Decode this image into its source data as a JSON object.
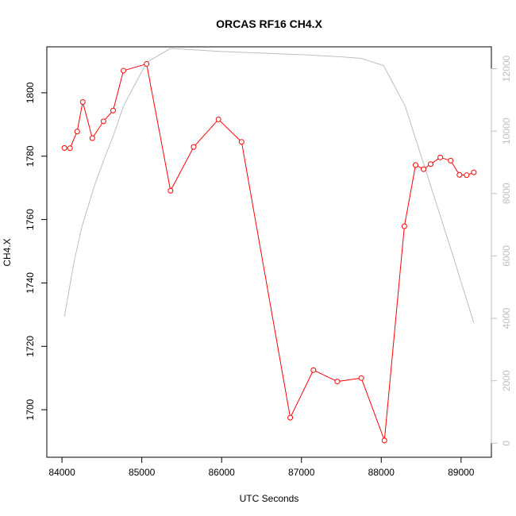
{
  "chart_data": {
    "type": "line",
    "title": "ORCAS RF16 CH4.X",
    "xlabel": "UTC Seconds",
    "ylabel": "CH4.X",
    "xlim": [
      83810,
      89380
    ],
    "ylim": [
      1685,
      1814.5
    ],
    "y2lim": [
      -450,
      12700
    ],
    "x_ticks": [
      84000,
      85000,
      86000,
      87000,
      88000,
      89000
    ],
    "x_tick_labels": [
      "84000",
      "85000",
      "86000",
      "87000",
      "88000",
      "89000"
    ],
    "y_ticks": [
      1700,
      1720,
      1740,
      1760,
      1780,
      1800
    ],
    "y_tick_labels": [
      "1700",
      "1720",
      "1740",
      "1760",
      "1780",
      "1800"
    ],
    "y2_ticks": [
      0,
      2000,
      4000,
      6000,
      8000,
      10000,
      12000
    ],
    "y2_tick_labels": [
      "0",
      "2000",
      "4000",
      "6000",
      "8000",
      "10000",
      "12000"
    ],
    "colors": {
      "ch4": "#ff0000",
      "secondary": "#bebebe",
      "frame": "#000000"
    },
    "series": [
      {
        "axis": "left",
        "style": "line+points",
        "color": "#ff0000",
        "x": [
          84030,
          84100,
          84190,
          84260,
          84380,
          84520,
          84640,
          84770,
          85060,
          85360,
          85650,
          85960,
          86250,
          86860,
          87150,
          87450,
          87750,
          88040,
          88290,
          88430,
          88530,
          88620,
          88740,
          88870,
          88980,
          89070,
          89160
        ],
        "y": [
          1782.6,
          1782.5,
          1787.8,
          1797.1,
          1785.7,
          1791.0,
          1794.4,
          1807.0,
          1809.1,
          1769.1,
          1782.9,
          1791.6,
          1784.5,
          1697.5,
          1712.5,
          1708.9,
          1710.0,
          1690.3,
          1757.9,
          1777.2,
          1775.9,
          1777.5,
          1779.6,
          1778.6,
          1774.1,
          1774.0,
          1774.9
        ]
      },
      {
        "axis": "right",
        "style": "line",
        "color": "#bebebe",
        "x": [
          84030,
          84150,
          84250,
          84400,
          84520,
          84650,
          84770,
          85060,
          85360,
          86000,
          86500,
          87000,
          87500,
          87750,
          88030,
          88300,
          88600,
          88900,
          89160
        ],
        "y": [
          4050,
          5800,
          6950,
          8200,
          9050,
          9900,
          10800,
          12200,
          12650,
          12550,
          12500,
          12450,
          12380,
          12330,
          12100,
          10800,
          8400,
          6000,
          3850
        ]
      }
    ]
  }
}
